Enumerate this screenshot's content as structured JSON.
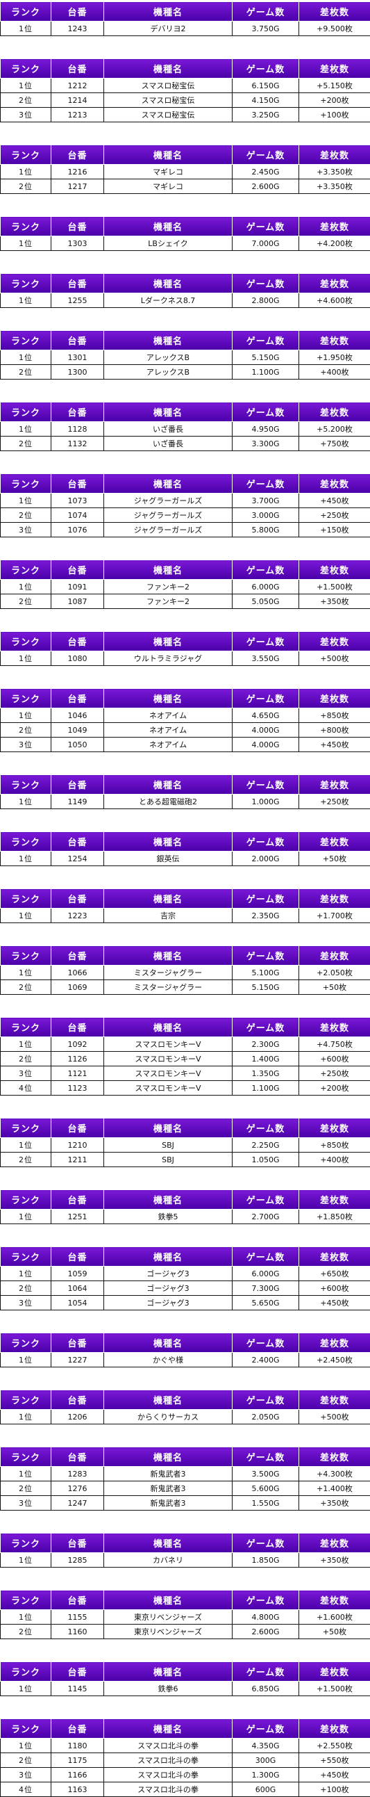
{
  "headers": [
    "ランク",
    "台番",
    "機種名",
    "ゲーム数",
    "差枚数"
  ],
  "colors": {
    "header_top": "#7a18d8",
    "header_bottom": "#4a00a8",
    "header_text": "#ffffff",
    "border": "#111111"
  },
  "tables": [
    {
      "rows": [
        [
          "1位",
          "1243",
          "デバリヨ2",
          "3.750G",
          "+9.500枚"
        ]
      ]
    },
    {
      "rows": [
        [
          "1位",
          "1212",
          "スマスロ秘宝伝",
          "6.150G",
          "+5.150枚"
        ],
        [
          "2位",
          "1214",
          "スマスロ秘宝伝",
          "4.150G",
          "+200枚"
        ],
        [
          "3位",
          "1213",
          "スマスロ秘宝伝",
          "3.250G",
          "+100枚"
        ]
      ]
    },
    {
      "rows": [
        [
          "1位",
          "1216",
          "マギレコ",
          "2.450G",
          "+3.350枚"
        ],
        [
          "2位",
          "1217",
          "マギレコ",
          "2.600G",
          "+3.350枚"
        ]
      ]
    },
    {
      "rows": [
        [
          "1位",
          "1303",
          "LBシェイク",
          "7.000G",
          "+4.200枚"
        ]
      ]
    },
    {
      "rows": [
        [
          "1位",
          "1255",
          "Lダークネス8.7",
          "2.800G",
          "+4.600枚"
        ]
      ]
    },
    {
      "rows": [
        [
          "1位",
          "1301",
          "アレックスB",
          "5.150G",
          "+1.950枚"
        ],
        [
          "2位",
          "1300",
          "アレックスB",
          "1.100G",
          "+400枚"
        ]
      ]
    },
    {
      "rows": [
        [
          "1位",
          "1128",
          "いざ番長",
          "4.950G",
          "+5.200枚"
        ],
        [
          "2位",
          "1132",
          "いざ番長",
          "3.300G",
          "+750枚"
        ]
      ]
    },
    {
      "rows": [
        [
          "1位",
          "1073",
          "ジャグラーガールズ",
          "3.700G",
          "+450枚"
        ],
        [
          "2位",
          "1074",
          "ジャグラーガールズ",
          "3.000G",
          "+250枚"
        ],
        [
          "3位",
          "1076",
          "ジャグラーガールズ",
          "5.800G",
          "+150枚"
        ]
      ]
    },
    {
      "rows": [
        [
          "1位",
          "1091",
          "ファンキー2",
          "6.000G",
          "+1.500枚"
        ],
        [
          "2位",
          "1087",
          "ファンキー2",
          "5.050G",
          "+350枚"
        ]
      ]
    },
    {
      "rows": [
        [
          "1位",
          "1080",
          "ウルトラミラジャグ",
          "3.550G",
          "+500枚"
        ]
      ]
    },
    {
      "rows": [
        [
          "1位",
          "1046",
          "ネオアイム",
          "4.650G",
          "+850枚"
        ],
        [
          "2位",
          "1049",
          "ネオアイム",
          "4.000G",
          "+800枚"
        ],
        [
          "3位",
          "1050",
          "ネオアイム",
          "4.000G",
          "+450枚"
        ]
      ]
    },
    {
      "rows": [
        [
          "1位",
          "1149",
          "とある超電磁砲2",
          "1.000G",
          "+250枚"
        ]
      ]
    },
    {
      "rows": [
        [
          "1位",
          "1254",
          "銀英伝",
          "2.000G",
          "+50枚"
        ]
      ]
    },
    {
      "rows": [
        [
          "1位",
          "1223",
          "吉宗",
          "2.350G",
          "+1.700枚"
        ]
      ]
    },
    {
      "rows": [
        [
          "1位",
          "1066",
          "ミスタージャグラー",
          "5.100G",
          "+2.050枚"
        ],
        [
          "2位",
          "1069",
          "ミスタージャグラー",
          "5.150G",
          "+50枚"
        ]
      ]
    },
    {
      "rows": [
        [
          "1位",
          "1092",
          "スマスロモンキーV",
          "2.300G",
          "+4.750枚"
        ],
        [
          "2位",
          "1126",
          "スマスロモンキーV",
          "1.400G",
          "+600枚"
        ],
        [
          "3位",
          "1121",
          "スマスロモンキーV",
          "1.350G",
          "+250枚"
        ],
        [
          "4位",
          "1123",
          "スマスロモンキーV",
          "1.100G",
          "+200枚"
        ]
      ]
    },
    {
      "rows": [
        [
          "1位",
          "1210",
          "SBJ",
          "2.250G",
          "+850枚"
        ],
        [
          "2位",
          "1211",
          "SBJ",
          "1.050G",
          "+400枚"
        ]
      ]
    },
    {
      "rows": [
        [
          "1位",
          "1251",
          "鉄拳5",
          "2.700G",
          "+1.850枚"
        ]
      ]
    },
    {
      "rows": [
        [
          "1位",
          "1059",
          "ゴージャグ3",
          "6.000G",
          "+650枚"
        ],
        [
          "2位",
          "1064",
          "ゴージャグ3",
          "7.300G",
          "+600枚"
        ],
        [
          "3位",
          "1054",
          "ゴージャグ3",
          "5.650G",
          "+450枚"
        ]
      ]
    },
    {
      "rows": [
        [
          "1位",
          "1227",
          "かぐや様",
          "2.400G",
          "+2.450枚"
        ]
      ]
    },
    {
      "rows": [
        [
          "1位",
          "1206",
          "からくりサーカス",
          "2.050G",
          "+500枚"
        ]
      ]
    },
    {
      "rows": [
        [
          "1位",
          "1283",
          "新鬼武者3",
          "3.500G",
          "+4.300枚"
        ],
        [
          "2位",
          "1276",
          "新鬼武者3",
          "5.600G",
          "+1.400枚"
        ],
        [
          "3位",
          "1247",
          "新鬼武者3",
          "1.550G",
          "+350枚"
        ]
      ]
    },
    {
      "rows": [
        [
          "1位",
          "1285",
          "カバネリ",
          "1.850G",
          "+350枚"
        ]
      ]
    },
    {
      "rows": [
        [
          "1位",
          "1155",
          "東京リベンジャーズ",
          "4.800G",
          "+1.600枚"
        ],
        [
          "2位",
          "1160",
          "東京リベンジャーズ",
          "2.600G",
          "+50枚"
        ]
      ]
    },
    {
      "rows": [
        [
          "1位",
          "1145",
          "鉄拳6",
          "6.850G",
          "+1.500枚"
        ]
      ]
    },
    {
      "rows": [
        [
          "1位",
          "1180",
          "スマスロ北斗の拳",
          "4.350G",
          "+2.550枚"
        ],
        [
          "2位",
          "1175",
          "スマスロ北斗の拳",
          "300G",
          "+550枚"
        ],
        [
          "3位",
          "1166",
          "スマスロ北斗の拳",
          "1.300G",
          "+450枚"
        ],
        [
          "4位",
          "1163",
          "スマスロ北斗の拳",
          "600G",
          "+100枚"
        ]
      ]
    }
  ]
}
